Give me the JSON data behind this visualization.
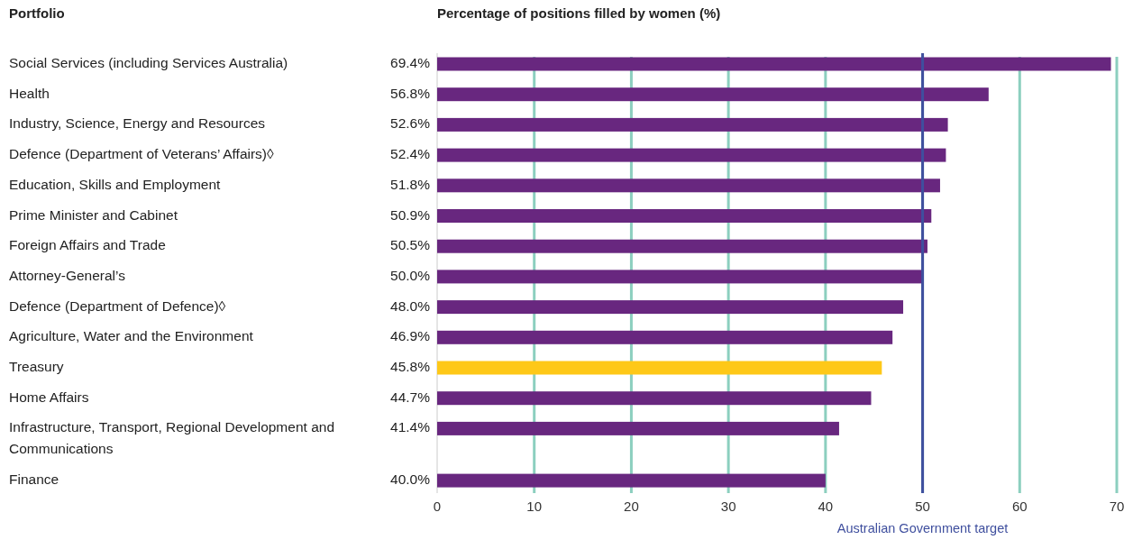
{
  "chart_data": {
    "type": "bar",
    "orientation": "horizontal",
    "title": "Percentage of positions filled by women (%)",
    "ylabel": "Portfolio",
    "categories": [
      "Social Services (including Services Australia)",
      "Health",
      "Industry, Science, Energy and Resources",
      "Defence (Department of Veterans’ Affairs)◊",
      "Education, Skills and Employment",
      "Prime Minister and Cabinet",
      "Foreign Affairs and Trade",
      "Attorney-General’s",
      "Defence (Department of Defence)◊",
      "Agriculture, Water and the Environment",
      "Treasury",
      "Home Affairs",
      "Infrastructure, Transport, Regional Development and Communications",
      "Finance"
    ],
    "values": [
      69.4,
      56.8,
      52.6,
      52.4,
      51.8,
      50.9,
      50.5,
      50.0,
      48.0,
      46.9,
      45.8,
      44.7,
      41.4,
      40.0
    ],
    "value_labels": [
      "69.4%",
      "56.8%",
      "52.6%",
      "52.4%",
      "51.8%",
      "50.9%",
      "50.5%",
      "50.0%",
      "48.0%",
      "46.9%",
      "45.8%",
      "44.7%",
      "41.4%",
      "40.0%"
    ],
    "colors": [
      "#68277f",
      "#68277f",
      "#68277f",
      "#68277f",
      "#68277f",
      "#68277f",
      "#68277f",
      "#68277f",
      "#68277f",
      "#68277f",
      "#fec818",
      "#68277f",
      "#68277f",
      "#68277f"
    ],
    "xlim": [
      0,
      70
    ],
    "xticks": [
      0,
      10,
      20,
      30,
      40,
      50,
      60,
      70
    ],
    "grid": "x",
    "ref_lines": [
      {
        "axis": "x",
        "value": 50,
        "label": "Australian Government target",
        "color": "#3f4f9e"
      }
    ]
  }
}
